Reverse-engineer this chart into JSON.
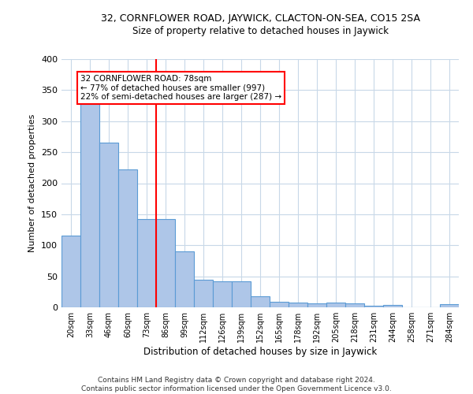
{
  "title_line1": "32, CORNFLOWER ROAD, JAYWICK, CLACTON-ON-SEA, CO15 2SA",
  "title_line2": "Size of property relative to detached houses in Jaywick",
  "xlabel": "Distribution of detached houses by size in Jaywick",
  "ylabel": "Number of detached properties",
  "categories": [
    "20sqm",
    "33sqm",
    "46sqm",
    "60sqm",
    "73sqm",
    "86sqm",
    "99sqm",
    "112sqm",
    "126sqm",
    "139sqm",
    "152sqm",
    "165sqm",
    "178sqm",
    "192sqm",
    "205sqm",
    "218sqm",
    "231sqm",
    "244sqm",
    "258sqm",
    "271sqm",
    "284sqm"
  ],
  "values": [
    115,
    330,
    265,
    222,
    142,
    142,
    90,
    45,
    42,
    42,
    18,
    9,
    7,
    6,
    7,
    6,
    3,
    4,
    0,
    0,
    5
  ],
  "bar_color": "#aec6e8",
  "bar_edge_color": "#5b9bd5",
  "grid_color": "#c8d8e8",
  "reference_line_x": 4.5,
  "reference_line_color": "red",
  "annotation_line1": "32 CORNFLOWER ROAD: 78sqm",
  "annotation_line2": "← 77% of detached houses are smaller (997)",
  "annotation_line3": "22% of semi-detached houses are larger (287) →",
  "annotation_box_color": "white",
  "annotation_box_edge_color": "red",
  "footer": "Contains HM Land Registry data © Crown copyright and database right 2024.\nContains public sector information licensed under the Open Government Licence v3.0.",
  "ylim": [
    0,
    400
  ],
  "yticks": [
    0,
    50,
    100,
    150,
    200,
    250,
    300,
    350,
    400
  ],
  "fig_width": 6.0,
  "fig_height": 5.0,
  "dpi": 100
}
